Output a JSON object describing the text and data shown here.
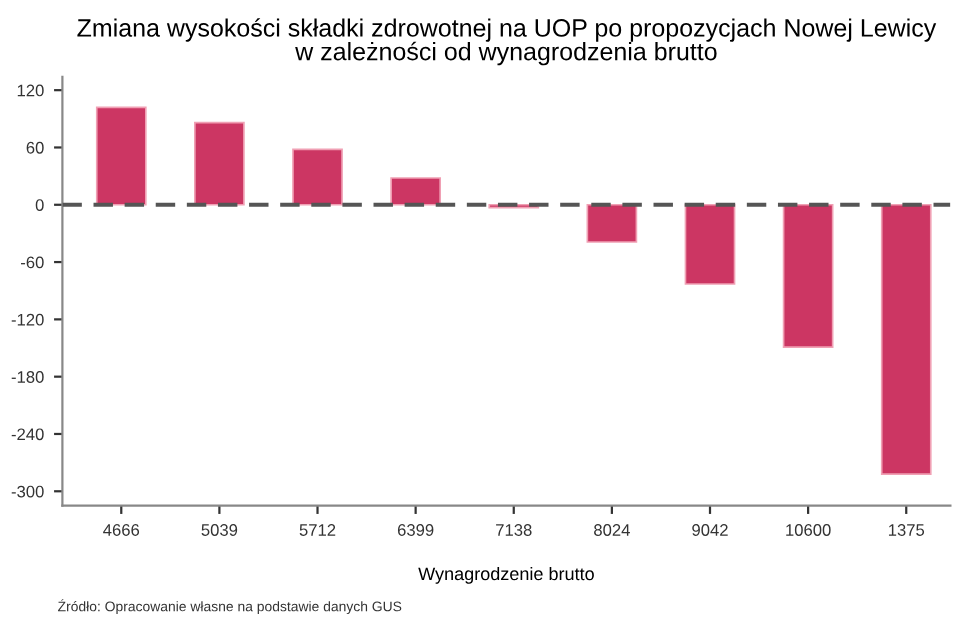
{
  "chart_data": {
    "type": "bar",
    "title": "Zmiana wysokości składki zdrowotnej na UOP po propozycjach Nowej Lewicy\nw zależności od wynagrodzenia brutto",
    "xlabel": "Wynagrodzenie brutto",
    "categories": [
      "4666",
      "5039",
      "5712",
      "6399",
      "7138",
      "8024",
      "9042",
      "10600",
      "1375"
    ],
    "values": [
      102,
      86,
      58,
      28,
      -3,
      -39,
      -83,
      -149,
      -282
    ],
    "color": "#cc3663",
    "ylim": [
      -315,
      134
    ],
    "yticks": [
      -300,
      -240,
      -180,
      -120,
      -60,
      0,
      60,
      120
    ],
    "ref_lines": [
      {
        "axis": "y",
        "value": 0,
        "color": "#555555",
        "line_style": "dashed"
      }
    ],
    "annotations": [
      "Źródło: Opracowanie własne na podstawie danych GUS"
    ],
    "grid": false,
    "legend": false
  }
}
